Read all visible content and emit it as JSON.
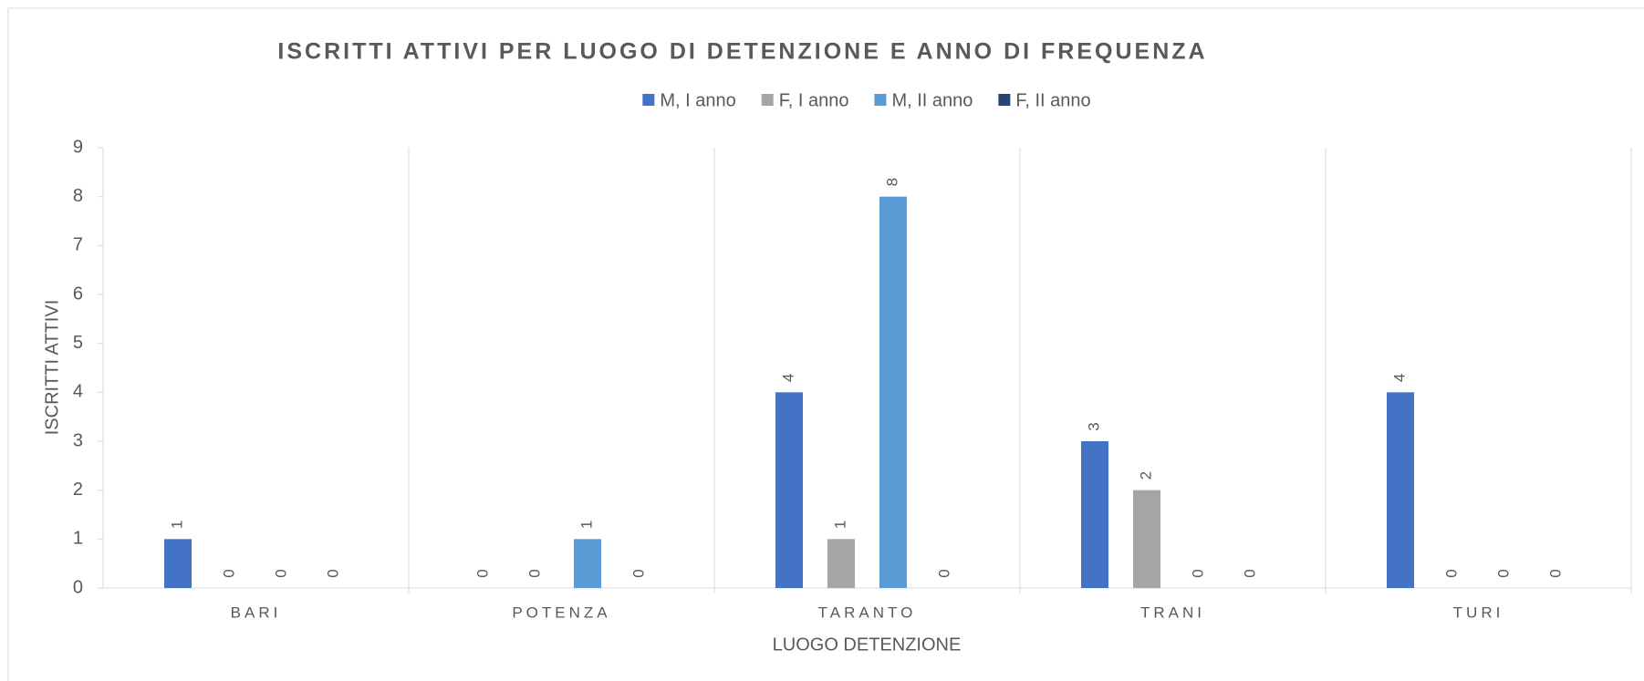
{
  "chart_data": {
    "type": "bar",
    "title": "ISCRITTI ATTIVI PER LUOGO DI DETENZIONE E ANNO DI FREQUENZA",
    "x_label": "LUOGO DETENZIONE",
    "y_label": "ISCRITTI ATTIVI",
    "categories": [
      "BARI",
      "POTENZA",
      "TARANTO",
      "TRANI",
      "TURI"
    ],
    "series": [
      {
        "name": "M, I anno",
        "color": "#4472c4",
        "values": [
          1,
          0,
          4,
          3,
          4
        ]
      },
      {
        "name": "F, I anno",
        "color": "#a5a5a5",
        "values": [
          0,
          0,
          1,
          2,
          0
        ]
      },
      {
        "name": "M, II anno",
        "color": "#5b9bd5",
        "values": [
          0,
          1,
          8,
          0,
          0
        ]
      },
      {
        "name": "F, II anno",
        "color": "#264478",
        "values": [
          0,
          0,
          0,
          0,
          0
        ]
      }
    ],
    "ylim": [
      0,
      9
    ],
    "yticks": [
      0,
      1,
      2,
      3,
      4,
      5,
      6,
      7,
      8,
      9
    ],
    "legend": "top",
    "data_labels": true
  }
}
